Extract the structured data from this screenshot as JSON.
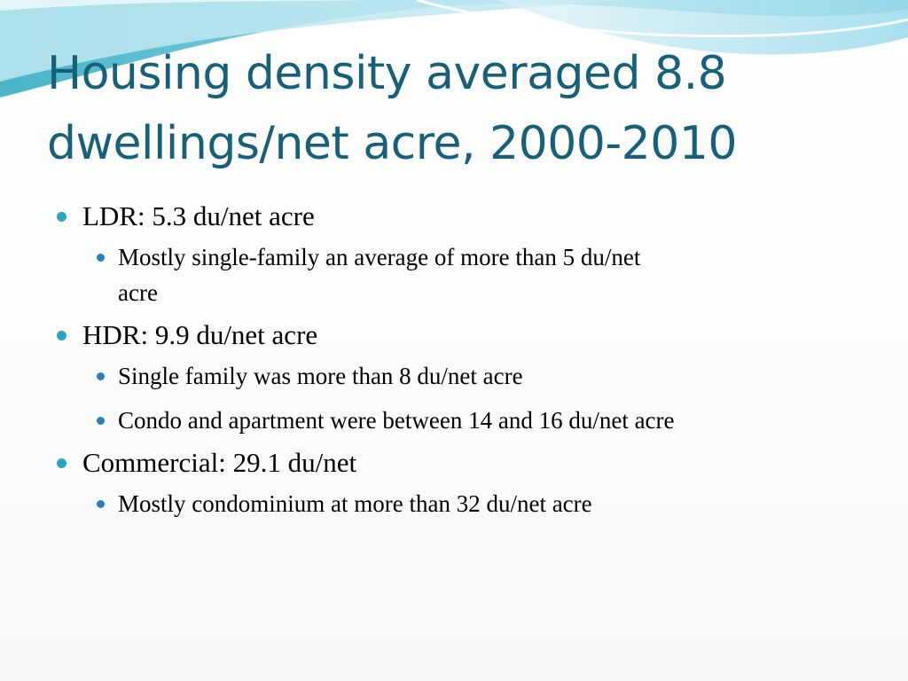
{
  "slide": {
    "title_line1": "Housing density averaged 8.8",
    "title_line2": "dwellings/net acre, 2000-2010",
    "colors": {
      "title": "#17607a",
      "bullet_level1": "#2aa7bd",
      "bullet_level2": "#2a7fbd",
      "wave_light": "#bfe7f0",
      "wave_mid": "#7fd0e4",
      "wave_dark": "#2aa7bd"
    },
    "bullets": [
      {
        "text": "LDR: 5.3 du/net acre",
        "sub": [
          {
            "line1": "Mostly single-family an average of more than 5 du/net",
            "line2": "acre"
          }
        ]
      },
      {
        "text": "HDR: 9.9 du/net acre",
        "sub": [
          {
            "line1": "Single family was more than 8 du/net acre"
          },
          {
            "line1": "Condo and apartment were between 14 and 16 du/net acre"
          }
        ]
      },
      {
        "text": "Commercial: 29.1 du/net",
        "sub": [
          {
            "line1": "Mostly condominium at more than 32 du/net acre"
          }
        ]
      }
    ]
  }
}
